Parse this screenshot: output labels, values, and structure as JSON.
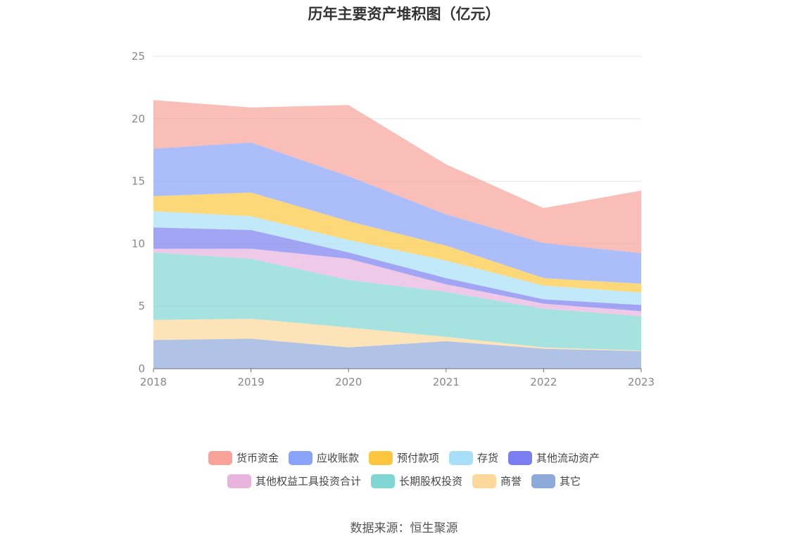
{
  "chart_data": {
    "type": "area",
    "stacked": true,
    "title": "历年主要资产堆积图（亿元）",
    "x": [
      "2018",
      "2019",
      "2020",
      "2021",
      "2022",
      "2023"
    ],
    "ylim": [
      0,
      25
    ],
    "yticks": [
      0,
      5,
      10,
      15,
      20,
      25
    ],
    "grid": true,
    "legend_position": "bottom",
    "series": [
      {
        "name": "其它",
        "color": "#8eaadb",
        "values": [
          2.3,
          2.4,
          1.7,
          2.2,
          1.6,
          1.4
        ]
      },
      {
        "name": "商誉",
        "color": "#fcd99a",
        "values": [
          1.6,
          1.6,
          1.6,
          0.35,
          0.1,
          0.05
        ]
      },
      {
        "name": "长期股权投资",
        "color": "#80d6d2",
        "values": [
          5.4,
          4.8,
          3.8,
          3.6,
          3.1,
          2.75
        ]
      },
      {
        "name": "其他权益工具投资合计",
        "color": "#e8b4de",
        "values": [
          0.3,
          0.8,
          1.7,
          0.6,
          0.4,
          0.4
        ]
      },
      {
        "name": "其他流动资产",
        "color": "#7b7ef0",
        "values": [
          1.7,
          1.5,
          0.5,
          0.5,
          0.35,
          0.5
        ]
      },
      {
        "name": "存货",
        "color": "#a8dff8",
        "values": [
          1.3,
          1.1,
          1.0,
          1.4,
          1.1,
          1.0
        ]
      },
      {
        "name": "预付款项",
        "color": "#fcc73e",
        "values": [
          1.2,
          1.9,
          1.5,
          1.2,
          0.6,
          0.7
        ]
      },
      {
        "name": "应收账款",
        "color": "#88a3f8",
        "values": [
          3.8,
          4.0,
          3.6,
          2.5,
          2.8,
          2.45
        ]
      },
      {
        "name": "货币资金",
        "color": "#f8a39a",
        "values": [
          3.9,
          2.8,
          5.7,
          4.0,
          2.8,
          5.0
        ]
      }
    ]
  },
  "legend": {
    "row1": [
      {
        "label": "货币资金",
        "color": "#f8a39a"
      },
      {
        "label": "应收账款",
        "color": "#88a3f8"
      },
      {
        "label": "预付款项",
        "color": "#fcc73e"
      },
      {
        "label": "存货",
        "color": "#a8dff8"
      },
      {
        "label": "其他流动资产",
        "color": "#7b7ef0"
      }
    ],
    "row2": [
      {
        "label": "其他权益工具投资合计",
        "color": "#e8b4de"
      },
      {
        "label": "长期股权投资",
        "color": "#80d6d2"
      },
      {
        "label": "商誉",
        "color": "#fcd99a"
      },
      {
        "label": "其它",
        "color": "#8eaadb"
      }
    ]
  },
  "source": "数据来源：恒生聚源"
}
